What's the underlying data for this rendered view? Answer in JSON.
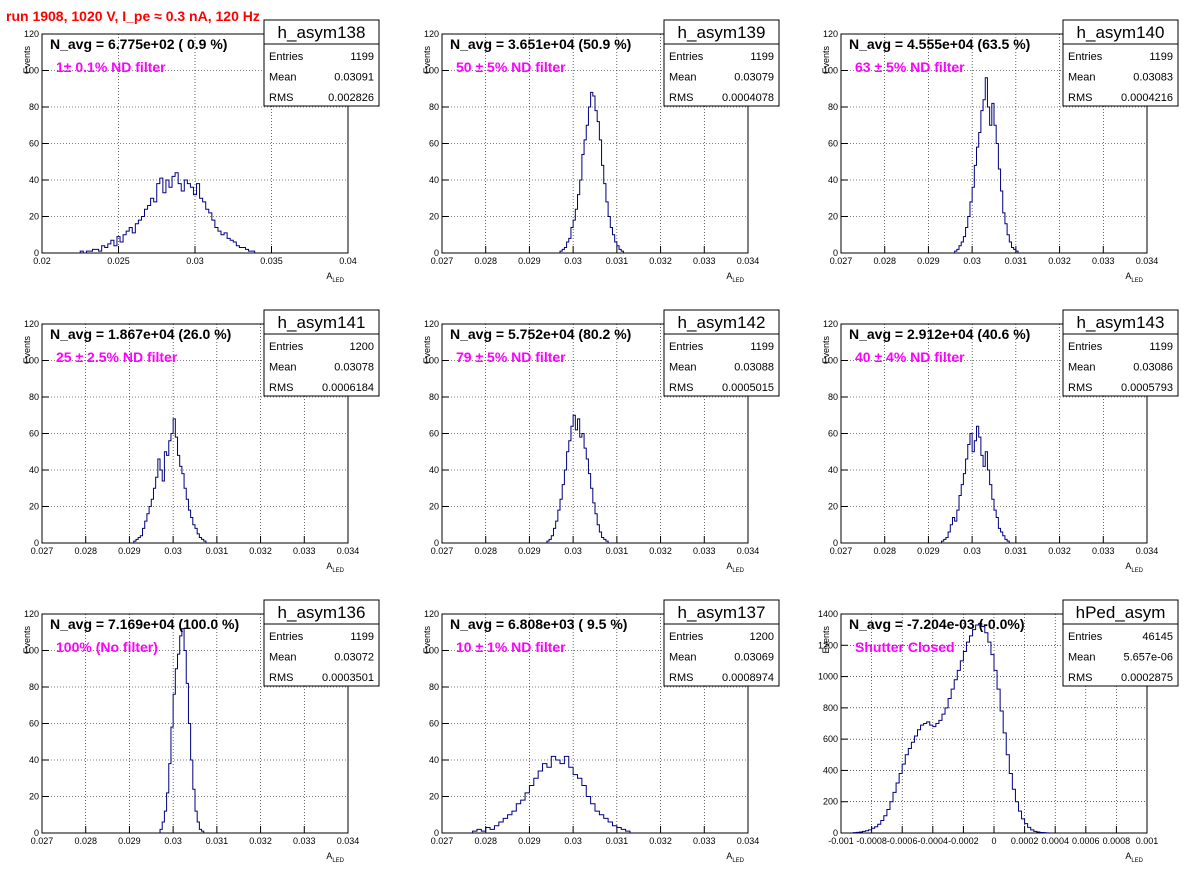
{
  "header": {
    "title": "run 1908,  1020 V, I_pe ≈ 0.3 nA, 120 Hz"
  },
  "chart_data": [
    {
      "type": "histogram",
      "name": "h_asym138",
      "navg": "N_avg = 6.775e+02 ( 0.9 %)",
      "note": "1± 0.1% ND filter",
      "stats": {
        "Entries": "1199",
        "Mean": "0.03091",
        "RMS": "0.002826"
      },
      "xlabel": "A_LED",
      "ylabel": "Events",
      "xlim": [
        0.02,
        0.04
      ],
      "ylim": [
        0,
        120
      ],
      "xticks": [
        "0.02",
        "0.025",
        "0.03",
        "0.035",
        "0.04"
      ],
      "yticks": [
        "0",
        "20",
        "40",
        "60",
        "80",
        "100",
        "120"
      ],
      "grid": true,
      "bin_start": 0.0225,
      "bin_width": 0.0002,
      "counts": [
        1,
        0,
        1,
        1,
        2,
        2,
        1,
        4,
        3,
        5,
        7,
        4,
        9,
        6,
        10,
        12,
        14,
        11,
        16,
        18,
        20,
        24,
        26,
        30,
        28,
        38,
        41,
        33,
        40,
        36,
        42,
        44,
        38,
        34,
        40,
        38,
        36,
        32,
        38,
        30,
        28,
        24,
        22,
        18,
        14,
        12,
        10,
        11,
        8,
        7,
        6,
        4,
        3,
        3,
        2,
        1,
        1
      ]
    },
    {
      "type": "histogram",
      "name": "h_asym139",
      "navg": "N_avg = 3.651e+04 (50.9 %)",
      "note": "50 ± 5% ND filter",
      "stats": {
        "Entries": "1199",
        "Mean": "0.03079",
        "RMS": "0.0004078"
      },
      "xlabel": "A_LED",
      "ylabel": "Events",
      "xlim": [
        0.027,
        0.034
      ],
      "ylim": [
        0,
        120
      ],
      "xticks": [
        "0.027",
        "0.028",
        "0.029",
        "0.03",
        "0.031",
        "0.032",
        "0.033",
        "0.034"
      ],
      "yticks": [
        "0",
        "20",
        "40",
        "60",
        "80",
        "100",
        "120"
      ],
      "grid": true,
      "bin_start": 0.0297,
      "bin_width": 5e-05,
      "counts": [
        1,
        2,
        3,
        6,
        8,
        14,
        18,
        24,
        32,
        40,
        54,
        62,
        70,
        80,
        88,
        86,
        78,
        72,
        62,
        48,
        38,
        28,
        20,
        14,
        10,
        6,
        4,
        2,
        1
      ]
    },
    {
      "type": "histogram",
      "name": "h_asym140",
      "navg": "N_avg = 4.555e+04 (63.5 %)",
      "note": "63 ± 5% ND filter",
      "stats": {
        "Entries": "1199",
        "Mean": "0.03083",
        "RMS": "0.0004216"
      },
      "xlabel": "A_LED",
      "ylabel": "Events",
      "xlim": [
        0.027,
        0.034
      ],
      "ylim": [
        0,
        120
      ],
      "xticks": [
        "0.027",
        "0.028",
        "0.029",
        "0.03",
        "0.031",
        "0.032",
        "0.033",
        "0.034"
      ],
      "yticks": [
        "0",
        "20",
        "40",
        "60",
        "80",
        "100",
        "120"
      ],
      "grid": true,
      "bin_start": 0.0296,
      "bin_width": 5e-05,
      "counts": [
        1,
        2,
        4,
        6,
        9,
        14,
        20,
        28,
        36,
        48,
        58,
        66,
        78,
        84,
        96,
        80,
        70,
        82,
        70,
        60,
        46,
        34,
        22,
        16,
        10,
        6,
        3,
        2,
        1
      ]
    },
    {
      "type": "histogram",
      "name": "h_asym141",
      "navg": "N_avg = 1.867e+04 (26.0 %)",
      "note": "25 ± 2.5% ND filter",
      "stats": {
        "Entries": "1200",
        "Mean": "0.03078",
        "RMS": "0.0006184"
      },
      "xlabel": "A_LED",
      "ylabel": "Events",
      "xlim": [
        0.027,
        0.034
      ],
      "ylim": [
        0,
        120
      ],
      "xticks": [
        "0.027",
        "0.028",
        "0.029",
        "0.03",
        "0.031",
        "0.032",
        "0.033",
        "0.034"
      ],
      "yticks": [
        "0",
        "20",
        "40",
        "60",
        "80",
        "100",
        "120"
      ],
      "grid": true,
      "bin_start": 0.0291,
      "bin_width": 5e-05,
      "counts": [
        1,
        2,
        3,
        4,
        8,
        12,
        16,
        20,
        24,
        30,
        36,
        46,
        40,
        34,
        50,
        48,
        56,
        60,
        68,
        58,
        48,
        42,
        38,
        30,
        24,
        18,
        14,
        10,
        8,
        5,
        3,
        2,
        1
      ]
    },
    {
      "type": "histogram",
      "name": "h_asym142",
      "navg": "N_avg = 5.752e+04 (80.2 %)",
      "note": "79 ± 5% ND filter",
      "stats": {
        "Entries": "1199",
        "Mean": "0.03088",
        "RMS": "0.0005015"
      },
      "xlabel": "A_LED",
      "ylabel": "Events",
      "xlim": [
        0.027,
        0.034
      ],
      "ylim": [
        0,
        120
      ],
      "xticks": [
        "0.027",
        "0.028",
        "0.029",
        "0.03",
        "0.031",
        "0.032",
        "0.033",
        "0.034"
      ],
      "yticks": [
        "0",
        "20",
        "40",
        "60",
        "80",
        "100",
        "120"
      ],
      "grid": true,
      "bin_start": 0.0294,
      "bin_width": 5e-05,
      "counts": [
        1,
        2,
        4,
        8,
        12,
        18,
        24,
        32,
        40,
        50,
        56,
        64,
        70,
        62,
        68,
        58,
        60,
        52,
        46,
        38,
        30,
        22,
        16,
        10,
        6,
        3,
        2,
        1
      ]
    },
    {
      "type": "histogram",
      "name": "h_asym143",
      "navg": "N_avg = 2.912e+04 (40.6 %)",
      "note": "40 ± 4% ND filter",
      "stats": {
        "Entries": "1199",
        "Mean": "0.03086",
        "RMS": "0.0005793"
      },
      "xlabel": "A_LED",
      "ylabel": "Events",
      "xlim": [
        0.027,
        0.034
      ],
      "ylim": [
        0,
        120
      ],
      "xticks": [
        "0.027",
        "0.028",
        "0.029",
        "0.03",
        "0.031",
        "0.032",
        "0.033",
        "0.034"
      ],
      "yticks": [
        "0",
        "20",
        "40",
        "60",
        "80",
        "100",
        "120"
      ],
      "grid": true,
      "bin_start": 0.0293,
      "bin_width": 5e-05,
      "counts": [
        1,
        2,
        3,
        6,
        10,
        14,
        12,
        18,
        26,
        32,
        38,
        46,
        54,
        60,
        50,
        56,
        64,
        58,
        48,
        42,
        50,
        40,
        32,
        24,
        18,
        14,
        8,
        6,
        4,
        2,
        1
      ]
    },
    {
      "type": "histogram",
      "name": "h_asym136",
      "navg": "N_avg = 7.169e+04 (100.0 %)",
      "note": "100% (No filter)",
      "stats": {
        "Entries": "1199",
        "Mean": "0.03072",
        "RMS": "0.0003501"
      },
      "xlabel": "A_LED",
      "ylabel": "Events",
      "xlim": [
        0.027,
        0.034
      ],
      "ylim": [
        0,
        120
      ],
      "xticks": [
        "0.027",
        "0.028",
        "0.029",
        "0.03",
        "0.031",
        "0.032",
        "0.033",
        "0.034"
      ],
      "yticks": [
        "0",
        "20",
        "40",
        "60",
        "80",
        "100",
        "120"
      ],
      "grid": true,
      "bin_start": 0.0297,
      "bin_width": 5e-05,
      "counts": [
        2,
        6,
        12,
        22,
        38,
        58,
        76,
        90,
        98,
        108,
        112,
        100,
        82,
        60,
        40,
        24,
        12,
        6,
        2,
        1
      ]
    },
    {
      "type": "histogram",
      "name": "h_asym137",
      "navg": "N_avg = 6.808e+03 ( 9.5 %)",
      "note": "10 ± 1% ND filter",
      "stats": {
        "Entries": "1200",
        "Mean": "0.03069",
        "RMS": "0.0008974"
      },
      "xlabel": "A_LED",
      "ylabel": "Events",
      "xlim": [
        0.027,
        0.034
      ],
      "ylim": [
        0,
        120
      ],
      "xticks": [
        "0.027",
        "0.028",
        "0.029",
        "0.03",
        "0.031",
        "0.032",
        "0.033",
        "0.034"
      ],
      "yticks": [
        "0",
        "20",
        "40",
        "60",
        "80",
        "100",
        "120"
      ],
      "grid": true,
      "bin_start": 0.0277,
      "bin_width": 0.0001,
      "counts": [
        1,
        2,
        1,
        3,
        2,
        4,
        6,
        8,
        10,
        12,
        16,
        18,
        22,
        26,
        30,
        34,
        38,
        36,
        42,
        40,
        38,
        42,
        36,
        32,
        30,
        26,
        20,
        16,
        12,
        10,
        8,
        6,
        4,
        3,
        2,
        1
      ]
    },
    {
      "type": "histogram",
      "name": "hPed_asym",
      "navg": "N_avg = -7.204e-03 (-0.0%)",
      "note": "Shutter Closed",
      "stats": {
        "Entries": "46145",
        "Mean": "5.657e-06",
        "RMS": "0.0002875"
      },
      "xlabel": "A_LED",
      "ylabel": "Events",
      "xlim": [
        -0.001,
        0.001
      ],
      "ylim": [
        0,
        1400
      ],
      "xticks": [
        "-0.001",
        "-0.0008",
        "-0.0006",
        "-0.0004",
        "-0.0002",
        "0",
        "0.0002",
        "0.0004",
        "0.0006",
        "0.0008",
        "0.001"
      ],
      "yticks": [
        "0",
        "200",
        "400",
        "600",
        "800",
        "1000",
        "1200",
        "1400"
      ],
      "grid": true,
      "bin_start": -0.00092,
      "bin_width": 2e-05,
      "counts": [
        2,
        4,
        6,
        10,
        14,
        20,
        30,
        40,
        56,
        80,
        110,
        150,
        200,
        260,
        320,
        380,
        440,
        500,
        540,
        580,
        620,
        660,
        690,
        700,
        710,
        690,
        680,
        700,
        720,
        760,
        800,
        860,
        920,
        980,
        1040,
        1100,
        1160,
        1220,
        1260,
        1300,
        1330,
        1340,
        1320,
        1280,
        1220,
        1140,
        1040,
        920,
        780,
        640,
        500,
        380,
        280,
        200,
        140,
        90,
        60,
        36,
        20,
        10,
        6,
        3,
        2,
        1
      ]
    }
  ]
}
